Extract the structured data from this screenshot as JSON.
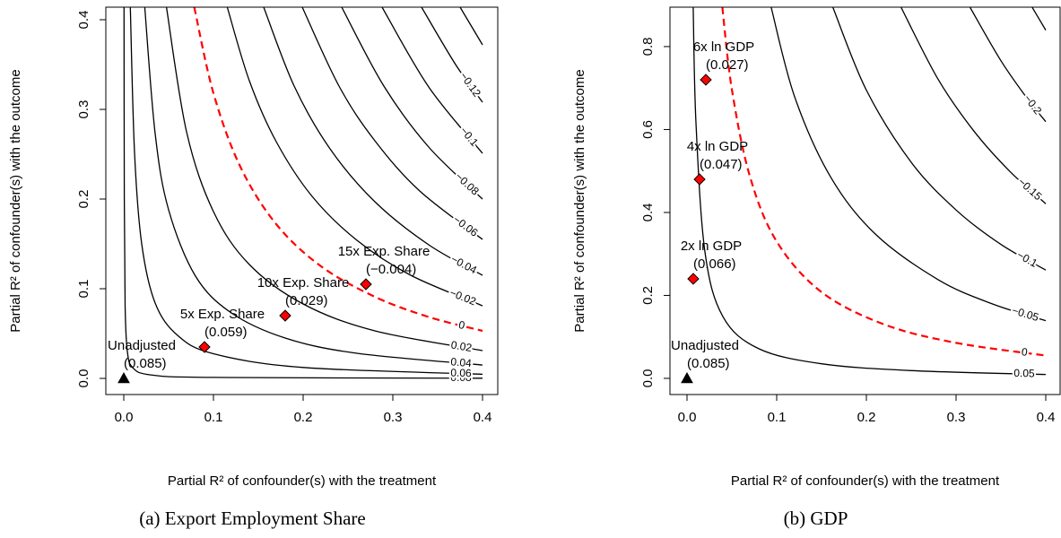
{
  "chart_data": [
    {
      "type": "contour",
      "xlabel": "Partial R² of confounder(s) with the treatment",
      "ylabel": "Partial R² of confounder(s) with the outcome",
      "caption": "(a) Export Employment Share",
      "xlim": [
        -0.02,
        0.417
      ],
      "ylim": [
        -0.018,
        0.414
      ],
      "xticks": [
        {
          "value": 0,
          "label": "0.0"
        },
        0.1,
        0.2,
        0.3,
        0.4
      ],
      "yticks": [
        {
          "value": 0,
          "label": "0.0"
        },
        0.1,
        0.2,
        0.3,
        0.4
      ],
      "contours": [
        {
          "label": "0.08",
          "color": "#000000",
          "dashed": false,
          "x": [
            0.0003,
            0.0006,
            0.0015,
            0.004,
            0.01,
            0.03,
            0.1,
            0.4
          ],
          "y": [
            0.414,
            0.2,
            0.081,
            0.03,
            0.012,
            0.0039,
            0.0011,
            0.0002
          ]
        },
        {
          "label": "0.06",
          "color": "#000000",
          "dashed": false,
          "x": [
            0.0073,
            0.012,
            0.02,
            0.035,
            0.06,
            0.1,
            0.2,
            0.4
          ],
          "y": [
            0.414,
            0.252,
            0.15,
            0.084,
            0.048,
            0.0275,
            0.0122,
            0.0046
          ]
        },
        {
          "label": "0.04",
          "color": "#000000",
          "dashed": false,
          "x": [
            0.0234,
            0.035,
            0.05,
            0.08,
            0.12,
            0.18,
            0.26,
            0.4
          ],
          "y": [
            0.414,
            0.273,
            0.188,
            0.114,
            0.073,
            0.045,
            0.028,
            0.0149
          ]
        },
        {
          "label": "0.02",
          "color": "#000000",
          "dashed": false,
          "x": [
            0.0476,
            0.07,
            0.1,
            0.14,
            0.2,
            0.28,
            0.4
          ],
          "y": [
            0.414,
            0.275,
            0.186,
            0.127,
            0.083,
            0.053,
            0.031
          ]
        },
        {
          "label": "0",
          "color": "#ff0000",
          "dashed": true,
          "x": [
            0.0786,
            0.1,
            0.13,
            0.17,
            0.22,
            0.28,
            0.34,
            0.4
          ],
          "y": [
            0.414,
            0.318,
            0.236,
            0.172,
            0.125,
            0.091,
            0.0685,
            0.053
          ]
        },
        {
          "label": "−0.02",
          "color": "#000000",
          "dashed": false,
          "x": [
            0.1154,
            0.14,
            0.17,
            0.21,
            0.26,
            0.32,
            0.4
          ],
          "y": [
            0.414,
            0.332,
            0.264,
            0.203,
            0.154,
            0.115,
            0.081
          ]
        },
        {
          "label": "−0.04",
          "color": "#000000",
          "dashed": false,
          "x": [
            0.156,
            0.19,
            0.23,
            0.28,
            0.34,
            0.4
          ],
          "y": [
            0.414,
            0.326,
            0.256,
            0.197,
            0.149,
            0.115
          ]
        },
        {
          "label": "−0.06",
          "color": "#000000",
          "dashed": false,
          "x": [
            0.199,
            0.24,
            0.28,
            0.33,
            0.4
          ],
          "y": [
            0.414,
            0.326,
            0.265,
            0.209,
            0.155
          ]
        },
        {
          "label": "−0.08",
          "color": "#000000",
          "dashed": false,
          "x": [
            0.243,
            0.29,
            0.34,
            0.4
          ],
          "y": [
            0.414,
            0.326,
            0.258,
            0.2
          ]
        },
        {
          "label": "−0.1",
          "color": "#000000",
          "dashed": false,
          "x": [
            0.288,
            0.34,
            0.4
          ],
          "y": [
            0.414,
            0.325,
            0.251
          ]
        },
        {
          "label": "−0.12",
          "color": "#000000",
          "dashed": false,
          "x": [
            0.332,
            0.37,
            0.4
          ],
          "y": [
            0.414,
            0.35,
            0.308
          ]
        },
        {
          "color": "#000000",
          "dashed": false,
          "x": [
            0.375,
            0.4
          ],
          "y": [
            0.414,
            0.372
          ]
        }
      ],
      "benchmarks": [
        {
          "label": "Unadjusted",
          "estimate_label": "(0.085)",
          "x": 0,
          "y": 0,
          "marker": "triangle",
          "color": "#000000"
        },
        {
          "label": "5x Exp. Share",
          "estimate_label": "(0.059)",
          "x": 0.09,
          "y": 0.035,
          "marker": "diamond",
          "color": "#ff0000"
        },
        {
          "label": "10x Exp. Share",
          "estimate_label": "(0.029)",
          "x": 0.18,
          "y": 0.07,
          "marker": "diamond",
          "color": "#ff0000"
        },
        {
          "label": "15x Exp. Share",
          "estimate_label": "(−0.004)",
          "x": 0.27,
          "y": 0.105,
          "marker": "diamond",
          "color": "#ff0000"
        }
      ]
    },
    {
      "type": "contour",
      "xlabel": "Partial R² of confounder(s) with the treatment",
      "ylabel": "Partial R² of confounder(s) with the outcome",
      "caption": "(b) GDP",
      "xlim": [
        -0.019,
        0.416
      ],
      "ylim": [
        -0.039,
        0.895
      ],
      "xticks": [
        {
          "value": 0,
          "label": "0.0"
        },
        0.1,
        0.2,
        0.3,
        0.4
      ],
      "yticks": [
        {
          "value": 0,
          "label": "0.0"
        },
        0.2,
        0.4,
        0.6,
        0.8
      ],
      "contours": [
        {
          "label": "0.05",
          "color": "#000000",
          "dashed": false,
          "x": [
            0.0069,
            0.01,
            0.02,
            0.04,
            0.08,
            0.15,
            0.25,
            0.4
          ],
          "y": [
            0.895,
            0.616,
            0.305,
            0.149,
            0.0715,
            0.0352,
            0.0187,
            0.0093
          ]
        },
        {
          "label": "0",
          "color": "#ff0000",
          "dashed": true,
          "x": [
            0.0394,
            0.05,
            0.07,
            0.1,
            0.15,
            0.22,
            0.3,
            0.4
          ],
          "y": [
            0.895,
            0.697,
            0.488,
            0.33,
            0.208,
            0.13,
            0.0856,
            0.055
          ]
        },
        {
          "label": "−0.05",
          "color": "#000000",
          "dashed": false,
          "x": [
            0.0938,
            0.12,
            0.16,
            0.21,
            0.28,
            0.34,
            0.4
          ],
          "y": [
            0.895,
            0.679,
            0.486,
            0.348,
            0.238,
            0.18,
            0.139
          ]
        },
        {
          "label": "−0.1",
          "color": "#000000",
          "dashed": false,
          "x": [
            0.1626,
            0.2,
            0.25,
            0.3,
            0.35,
            0.4
          ],
          "y": [
            0.895,
            0.695,
            0.521,
            0.406,
            0.323,
            0.261
          ]
        },
        {
          "label": "−0.15",
          "color": "#000000",
          "dashed": false,
          "x": [
            0.2386,
            0.28,
            0.32,
            0.36,
            0.4
          ],
          "y": [
            0.895,
            0.721,
            0.596,
            0.499,
            0.421
          ]
        },
        {
          "label": "−0.2",
          "color": "#000000",
          "dashed": false,
          "x": [
            0.3155,
            0.35,
            0.38,
            0.4
          ],
          "y": [
            0.895,
            0.766,
            0.673,
            0.619
          ]
        },
        {
          "color": "#000000",
          "dashed": false,
          "x": [
            0.3848,
            0.4
          ],
          "y": [
            0.895,
            0.8396
          ]
        }
      ],
      "benchmarks": [
        {
          "label": "Unadjusted",
          "estimate_label": "(0.085)",
          "x": 0,
          "y": 0,
          "marker": "triangle",
          "color": "#000000"
        },
        {
          "label": "2x ln GDP",
          "estimate_label": "(0.066)",
          "x": 0.007,
          "y": 0.24,
          "marker": "diamond",
          "color": "#ff0000"
        },
        {
          "label": "4x ln GDP",
          "estimate_label": "(0.047)",
          "x": 0.014,
          "y": 0.48,
          "marker": "diamond",
          "color": "#ff0000"
        },
        {
          "label": "6x ln GDP",
          "estimate_label": "(0.027)",
          "x": 0.021,
          "y": 0.72,
          "marker": "diamond",
          "color": "#ff0000"
        }
      ]
    }
  ]
}
